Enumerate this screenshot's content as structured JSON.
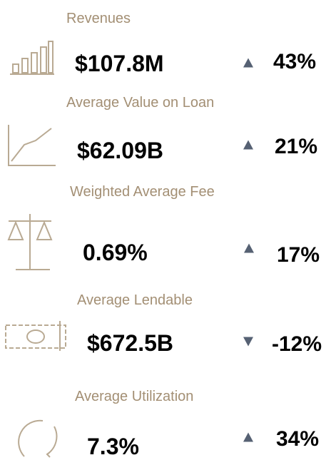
{
  "kpis": [
    {
      "label": "Revenues",
      "value": "$107.8M",
      "change": "43%",
      "direction": "up"
    },
    {
      "label": "Average Value on Loan",
      "value": "$62.09B",
      "change": "21%",
      "direction": "up"
    },
    {
      "label": "Weighted Average Fee",
      "value": "0.69%",
      "change": "17%",
      "direction": "up"
    },
    {
      "label": "Average Lendable",
      "value": "$672.5B",
      "change": "-12%",
      "direction": "down"
    },
    {
      "label": "Average Utilization",
      "value": "7.3%",
      "change": "34%",
      "direction": "up"
    }
  ],
  "arrow_color": "#566173"
}
